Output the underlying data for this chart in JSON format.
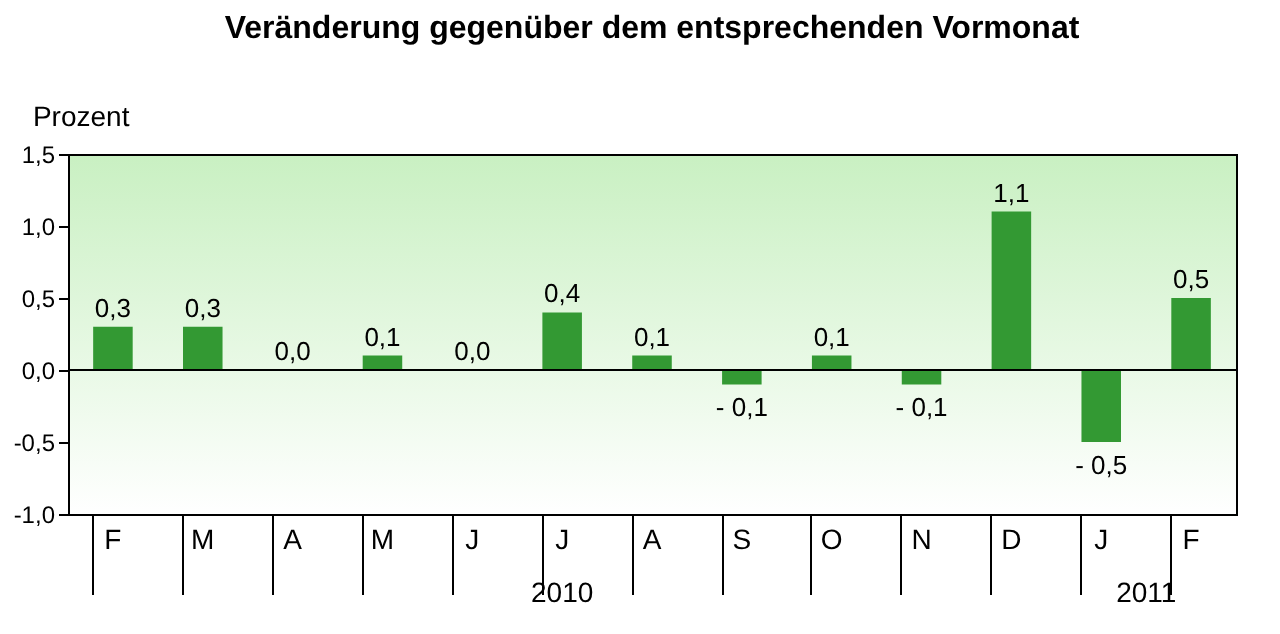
{
  "chart_data": {
    "type": "bar",
    "title": "Veränderung gegenüber dem entsprechenden Vormonat",
    "ylabel": "Prozent",
    "categories": [
      "F",
      "M",
      "A",
      "M",
      "J",
      "J",
      "A",
      "S",
      "O",
      "N",
      "D",
      "J",
      "F"
    ],
    "values": [
      0.3,
      0.3,
      0.0,
      0.1,
      0.0,
      0.4,
      0.1,
      -0.1,
      0.1,
      -0.1,
      1.1,
      -0.5,
      0.5
    ],
    "value_labels": [
      "0,3",
      "0,3",
      "0,0",
      "0,1",
      "0,0",
      "0,4",
      "0,1",
      "- 0,1",
      "0,1",
      "- 0,1",
      "1,1",
      "- 0,5",
      "0,5"
    ],
    "color": "#339933",
    "ylim": [
      -1.0,
      1.5
    ],
    "yticks": [
      {
        "value": -1.0,
        "label": "-1,0"
      },
      {
        "value": -0.5,
        "label": "-0,5"
      },
      {
        "value": 0.0,
        "label": "0,0"
      },
      {
        "value": 0.5,
        "label": "0,5"
      },
      {
        "value": 1.0,
        "label": "1,0"
      },
      {
        "value": 1.5,
        "label": "1,5"
      }
    ],
    "ref_lines": [
      {
        "axis": "y",
        "value": 0
      }
    ],
    "annotations": [
      "2010",
      "2011"
    ],
    "grid": false
  }
}
